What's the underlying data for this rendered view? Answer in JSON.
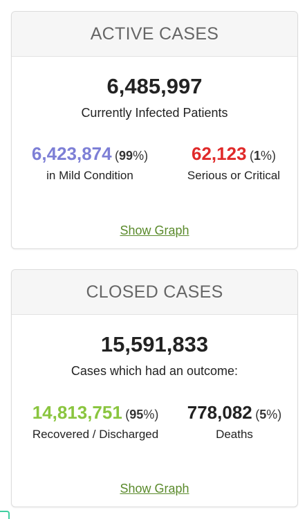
{
  "active_cases": {
    "title": "ACTIVE CASES",
    "total": "6,485,997",
    "subtitle": "Currently Infected Patients",
    "mild": {
      "value": "6,423,874",
      "percent": "99",
      "label": "in Mild Condition",
      "color": "#7d7fd6"
    },
    "critical": {
      "value": "62,123",
      "percent": "1",
      "label": "Serious or Critical",
      "color": "#e02a2a"
    },
    "show_graph": "Show Graph"
  },
  "closed_cases": {
    "title": "CLOSED CASES",
    "total": "15,591,833",
    "subtitle": "Cases which had an outcome:",
    "recovered": {
      "value": "14,813,751",
      "percent": "95",
      "label": "Recovered / Discharged",
      "color": "#8ac53f"
    },
    "deaths": {
      "value": "778,082",
      "percent": "5",
      "label": "Deaths",
      "color": "#222222"
    },
    "show_graph": "Show Graph"
  },
  "colors": {
    "link": "#5a8a2b",
    "header_bg": "#f6f6f6",
    "corner_icon": "#3fcfa0"
  }
}
